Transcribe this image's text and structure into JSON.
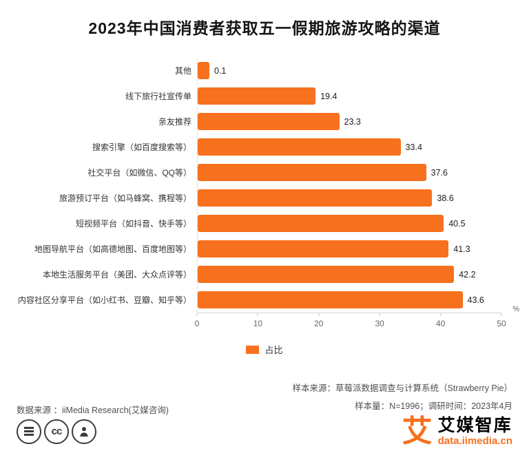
{
  "chart_data": {
    "type": "bar",
    "orientation": "horizontal",
    "title": "2023年中国消费者获取五一假期旅游攻略的渠道",
    "series_name": "占比",
    "categories": [
      "其他",
      "线下旅行社宣传单",
      "亲友推荐",
      "搜索引擎（如百度搜索等）",
      "社交平台（如微信、QQ等）",
      "旅游预订平台（如马蜂窝、携程等）",
      "短视频平台（如抖音、快手等）",
      "地图导航平台（如高德地图、百度地图等）",
      "本地生活服务平台（美团、大众点评等）",
      "内容社区分享平台（如小红书、豆瓣、知乎等）"
    ],
    "values": [
      0.1,
      19.4,
      23.3,
      33.4,
      37.6,
      38.6,
      40.5,
      41.3,
      42.2,
      43.6
    ],
    "xlim": [
      0,
      50
    ],
    "x_ticks": [
      "0",
      "10",
      "20",
      "30",
      "40",
      "50"
    ],
    "x_axis_unit": "%",
    "bar_color": "#f7701d",
    "grid": false,
    "legend": {
      "label": "占比",
      "position": "bottom"
    }
  },
  "sources": {
    "data_source": "数据来源 ：iiMedia Research(艾媒咨询)",
    "sample_source": "样本来源：草莓派数据调查与计算系统（Strawberry Pie）",
    "sample_info": "样本量：N=1996；调研时间：2023年4月"
  },
  "footer": {
    "icons": [
      "menu-lines-icon",
      "cc-icon",
      "person-icon"
    ],
    "logo": {
      "mark": "艾",
      "name": "艾媒智库",
      "url": "data.iimedia.cn"
    }
  }
}
